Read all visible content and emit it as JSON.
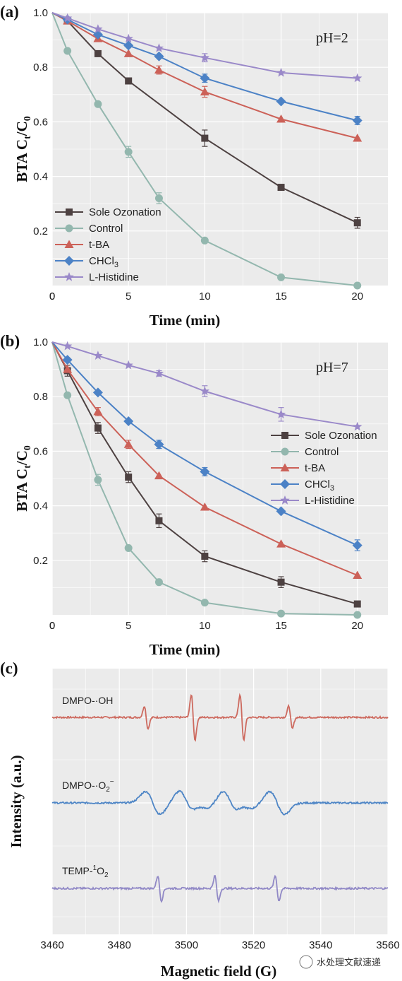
{
  "chart_data": [
    {
      "panel": "(a)",
      "type": "line",
      "annotation": "pH=2",
      "xlabel": "Time (min)",
      "ylabel": "BTA C_t/C_0",
      "xlim": [
        0,
        22
      ],
      "ylim": [
        0,
        1.0
      ],
      "xticks": [
        0,
        5,
        10,
        15,
        20
      ],
      "yticks": [
        0.2,
        0.4,
        0.6,
        0.8,
        1.0
      ],
      "legend_position": "bottom-left",
      "grid": true,
      "x": [
        0,
        1,
        3,
        5,
        7,
        10,
        15,
        20
      ],
      "series": [
        {
          "name": "Sole Ozonation",
          "color": "#4d4141",
          "marker": "square",
          "values": [
            1.0,
            0.97,
            0.85,
            0.75,
            null,
            0.54,
            0.36,
            0.23
          ],
          "errors": [
            0,
            0,
            0,
            0,
            null,
            0.03,
            0,
            0.02
          ]
        },
        {
          "name": "Control",
          "color": "#93b7ae",
          "marker": "circle",
          "values": [
            1.0,
            0.86,
            0.665,
            0.49,
            0.32,
            0.165,
            0.03,
            0.0
          ],
          "errors": [
            0,
            0,
            0,
            0.02,
            0.02,
            0,
            0,
            0
          ]
        },
        {
          "name": "t-BA",
          "color": "#cc6158",
          "marker": "triangle",
          "values": [
            1.0,
            0.97,
            0.905,
            0.85,
            0.79,
            0.71,
            0.61,
            0.54
          ],
          "errors": [
            0,
            0,
            0,
            0,
            0.015,
            0.02,
            0,
            0
          ]
        },
        {
          "name": "CHCl3",
          "color": "#4c82c6",
          "marker": "diamond",
          "values": [
            1.0,
            0.975,
            0.92,
            0.88,
            0.84,
            0.76,
            0.675,
            0.605
          ],
          "errors": [
            0,
            0,
            0,
            0,
            0,
            0.015,
            0,
            0.015
          ]
        },
        {
          "name": "L-Histidine",
          "color": "#9a89c9",
          "marker": "star",
          "values": [
            1.0,
            0.98,
            0.94,
            0.905,
            0.87,
            0.835,
            0.78,
            0.76
          ],
          "errors": [
            0,
            0,
            0,
            0,
            0,
            0.015,
            0,
            0
          ]
        }
      ]
    },
    {
      "panel": "(b)",
      "type": "line",
      "annotation": "pH=7",
      "xlabel": "Time (min)",
      "ylabel": "BTA C_t/C_0",
      "xlim": [
        0,
        22
      ],
      "ylim": [
        0,
        1.0
      ],
      "xticks": [
        0,
        5,
        10,
        15,
        20
      ],
      "yticks": [
        0.2,
        0.4,
        0.6,
        0.8,
        1.0
      ],
      "legend_position": "middle-right",
      "grid": true,
      "x": [
        0,
        1,
        3,
        5,
        7,
        10,
        15,
        20
      ],
      "series": [
        {
          "name": "Sole Ozonation",
          "color": "#4d4141",
          "marker": "square",
          "values": [
            1.0,
            0.895,
            0.685,
            0.505,
            0.345,
            0.215,
            0.12,
            0.04
          ],
          "errors": [
            0,
            0.02,
            0.02,
            0.02,
            0.025,
            0.02,
            0.02,
            0
          ]
        },
        {
          "name": "Control",
          "color": "#93b7ae",
          "marker": "circle",
          "values": [
            1.0,
            0.805,
            0.495,
            0.245,
            0.12,
            0.045,
            0.005,
            0.0
          ],
          "errors": [
            0,
            0,
            0.02,
            0,
            0,
            0,
            0,
            0
          ]
        },
        {
          "name": "t-BA",
          "color": "#cc6158",
          "marker": "triangle",
          "values": [
            1.0,
            0.9,
            0.745,
            0.625,
            0.51,
            0.395,
            0.26,
            0.145
          ],
          "errors": [
            0,
            0,
            0.015,
            0.015,
            0,
            0,
            0,
            0
          ]
        },
        {
          "name": "CHCl3",
          "color": "#4c82c6",
          "marker": "diamond",
          "values": [
            1.0,
            0.935,
            0.815,
            0.71,
            0.625,
            0.525,
            0.38,
            0.255
          ],
          "errors": [
            0,
            0,
            0,
            0,
            0.015,
            0.015,
            0,
            0.02
          ]
        },
        {
          "name": "L-Histidine",
          "color": "#9a89c9",
          "marker": "star",
          "values": [
            1.0,
            0.985,
            0.95,
            0.915,
            0.885,
            0.82,
            0.735,
            0.69
          ],
          "errors": [
            0,
            0,
            0,
            0,
            0.01,
            0.02,
            0.025,
            0
          ]
        }
      ]
    },
    {
      "panel": "(c)",
      "type": "line",
      "xlabel": "Magnetic field (G)",
      "ylabel": "Intensity (a.u.)",
      "xlim": [
        3460,
        3560
      ],
      "xticks": [
        3460,
        3480,
        3500,
        3520,
        3540,
        3560
      ],
      "grid": true,
      "series": [
        {
          "name": "DMPO-·OH",
          "color": "#cd6a5f",
          "peaks": [
            {
              "x": 3488,
              "amp": 1.0
            },
            {
              "x": 3502,
              "amp": 2.0
            },
            {
              "x": 3516.5,
              "amp": 2.0
            },
            {
              "x": 3531,
              "amp": 1.0
            }
          ]
        },
        {
          "name": "DMPO-·O2⁻",
          "color": "#4f86c6",
          "peaks": [
            {
              "x": 3490,
              "amp": 1.0
            },
            {
              "x": 3500,
              "amp": 1.0
            },
            {
              "x": 3504.5,
              "amp": 0.45
            },
            {
              "x": 3513,
              "amp": 1.0
            },
            {
              "x": 3517.5,
              "amp": 0.45
            },
            {
              "x": 3527,
              "amp": 1.0
            }
          ]
        },
        {
          "name": "TEMP-¹O2",
          "color": "#9189c6",
          "peaks": [
            {
              "x": 3492,
              "amp": 1.0
            },
            {
              "x": 3509,
              "amp": 1.0
            },
            {
              "x": 3527,
              "amp": 1.0
            }
          ]
        }
      ]
    }
  ],
  "labels": {
    "panel_a": "(a)",
    "panel_b": "(b)",
    "panel_c": "(c)",
    "ylabel_main": "BTA C",
    "ylabel_sub1": "t",
    "ylabel_mid": "/C",
    "ylabel_sub2": "0",
    "xlabel_time": "Time (min)",
    "ylabel_c": "Intensity (a.u.)",
    "xlabel_c": "Magnetic field (G)",
    "ann_a": "pH=2",
    "ann_b": "pH=7",
    "leg_sole": "Sole Ozonation",
    "leg_control": "Control",
    "leg_tba": "t-BA",
    "leg_chcl3_main": "CHCl",
    "leg_chcl3_sub": "3",
    "leg_hist": "L-Histidine",
    "spec_oh": "DMPO-·OH",
    "spec_o2_main": "DMPO-·O",
    "spec_o2_sub": "2",
    "spec_o2_sup": "−",
    "spec_temp_main": "TEMP-",
    "spec_temp_sup": "1",
    "spec_temp_o": "O",
    "spec_temp_sub": "2",
    "watermark": "水处理文献速递"
  }
}
